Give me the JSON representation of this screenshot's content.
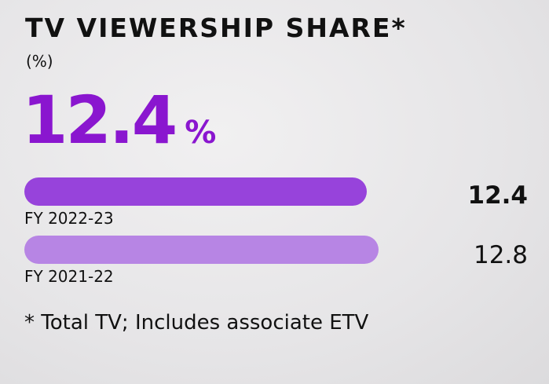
{
  "chart_data": {
    "type": "bar",
    "orientation": "horizontal",
    "title": "TV VIEWERSHIP SHARE*",
    "unit": "(%)",
    "headline_value": "12.4",
    "headline_unit": "%",
    "categories": [
      "FY 2022-23",
      "FY 2021-22"
    ],
    "values": [
      12.4,
      12.8
    ],
    "value_labels": [
      "12.4",
      "12.8"
    ],
    "bar_colors": [
      "#9743db",
      "#b785e4"
    ],
    "footnote": "* Total TV; Includes associate ETV"
  }
}
